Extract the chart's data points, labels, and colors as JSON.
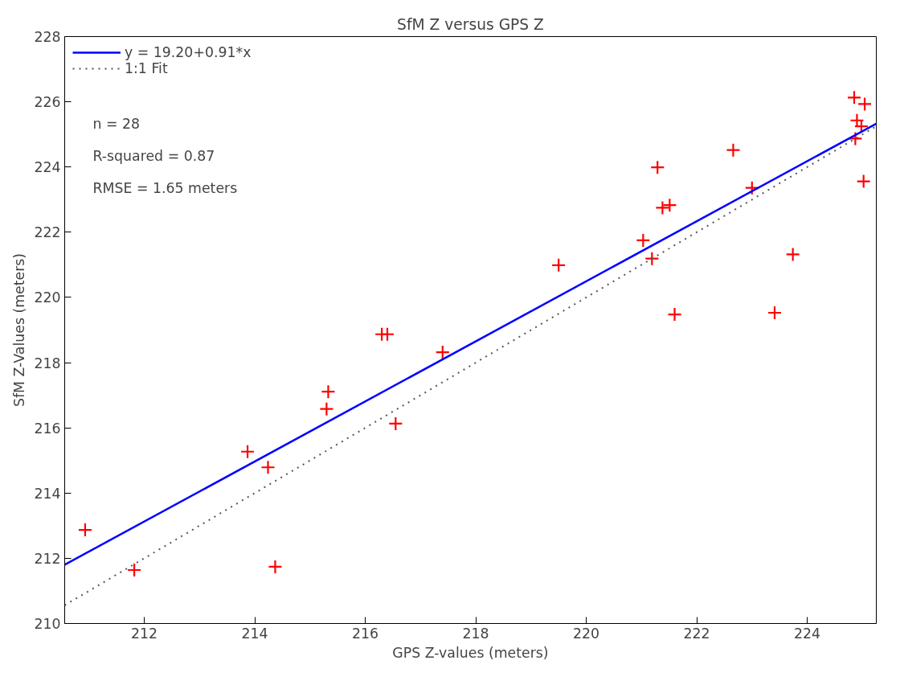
{
  "chart_data": {
    "type": "scatter",
    "title": "SfM Z versus GPS Z",
    "xlabel": "GPS Z-values (meters)",
    "ylabel": "SfM Z-Values (meters)",
    "xlim": [
      210.56,
      225.25
    ],
    "ylim": [
      210,
      228
    ],
    "xticks": [
      212,
      214,
      216,
      218,
      220,
      222,
      224
    ],
    "yticks": [
      210,
      212,
      214,
      216,
      218,
      220,
      222,
      224,
      226,
      228
    ],
    "grid": false,
    "legend": "top left",
    "annotations": [
      "n = 28",
      "R-squared = 0.87",
      "RMSE = 1.65 meters"
    ],
    "series": [
      {
        "color": "#ff0000",
        "marker": "cross",
        "x": [
          210.93,
          211.82,
          213.87,
          214.24,
          214.37,
          215.3,
          215.33,
          216.3,
          216.4,
          216.55,
          217.4,
          219.5,
          221.03,
          221.19,
          221.29,
          221.38,
          221.51,
          221.6,
          222.66,
          223.0,
          223.41,
          223.74,
          224.85,
          225.04,
          224.9,
          224.98,
          224.87,
          225.02
        ],
        "values": [
          212.87,
          211.64,
          215.27,
          214.79,
          211.74,
          216.58,
          217.11,
          218.87,
          218.87,
          216.13,
          218.32,
          220.99,
          221.75,
          221.19,
          223.99,
          222.75,
          222.83,
          219.48,
          224.52,
          223.36,
          219.53,
          221.32,
          226.13,
          225.93,
          225.43,
          225.25,
          224.87,
          223.56
        ]
      },
      {
        "type": "line",
        "name": "y = 19.20+0.91*x",
        "color": "#0000ff",
        "line_style": "solid",
        "x": [
          210.56,
          225.25
        ],
        "values": [
          211.8,
          225.33
        ]
      },
      {
        "type": "line",
        "name": "1:1 Fit",
        "color": "#555555",
        "line_style": "dotted",
        "x": [
          210.56,
          225.25
        ],
        "values": [
          210.56,
          225.25
        ]
      }
    ]
  }
}
